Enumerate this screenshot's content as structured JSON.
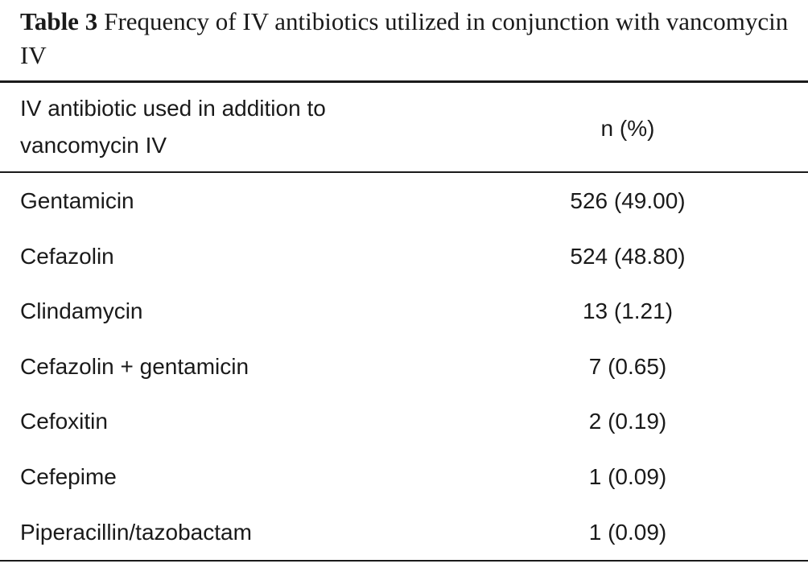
{
  "table": {
    "label": "Table 3",
    "caption": "Frequency of IV antibiotics utilized in conjunction with vancomycin IV",
    "header": [
      "IV antibiotic used in addition to vancomycin IV",
      "n (%)"
    ],
    "rows": [
      [
        "Gentamicin",
        "526 (49.00)"
      ],
      [
        "Cefazolin",
        "524 (48.80)"
      ],
      [
        "Clindamycin",
        "13 (1.21)"
      ],
      [
        "Cefazolin + gentamicin",
        "7 (0.65)"
      ],
      [
        "Cefoxitin",
        "2 (0.19)"
      ],
      [
        "Cefepime",
        "1 (0.09)"
      ],
      [
        "Piperacillin/tazobactam",
        "1 (0.09)"
      ]
    ]
  }
}
